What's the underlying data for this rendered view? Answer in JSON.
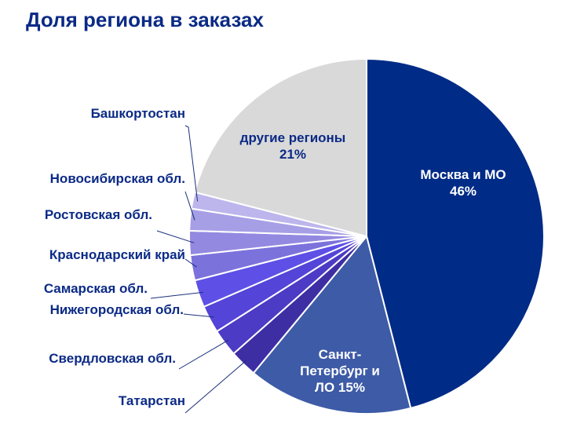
{
  "chart_data": {
    "type": "pie",
    "title": "Доля региона в заказах",
    "slices": [
      {
        "label": "Москва и МО",
        "value": 46,
        "color": "#002b87",
        "label_text": "Москва и МО\n46%"
      },
      {
        "label": "Санкт-Петербург и ЛО",
        "value": 15,
        "color": "#3d5ba6",
        "label_text": "Санкт-\nПетербург и\nЛО 15%"
      },
      {
        "label": "Татарстан",
        "value": 2.5,
        "color": "#3e2ea4"
      },
      {
        "label": "Свердловская обл.",
        "value": 2.5,
        "color": "#4c3bc4"
      },
      {
        "label": "Нижегородская обл.",
        "value": 2.5,
        "color": "#5444d8"
      },
      {
        "label": "Самарская обл.",
        "value": 2.5,
        "color": "#5e50e6"
      },
      {
        "label": "Краснодарский край",
        "value": 2.3,
        "color": "#7c72dc"
      },
      {
        "label": "Ростовская обл.",
        "value": 2.2,
        "color": "#9389e1"
      },
      {
        "label": "Новосибирская обл.",
        "value": 2.0,
        "color": "#a69fe6"
      },
      {
        "label": "Башкортостан",
        "value": 1.5,
        "color": "#bcb6ec"
      },
      {
        "label": "другие регионы",
        "value": 21,
        "color": "#d9d9d9",
        "label_text": "другие регионы\n21%"
      }
    ]
  }
}
